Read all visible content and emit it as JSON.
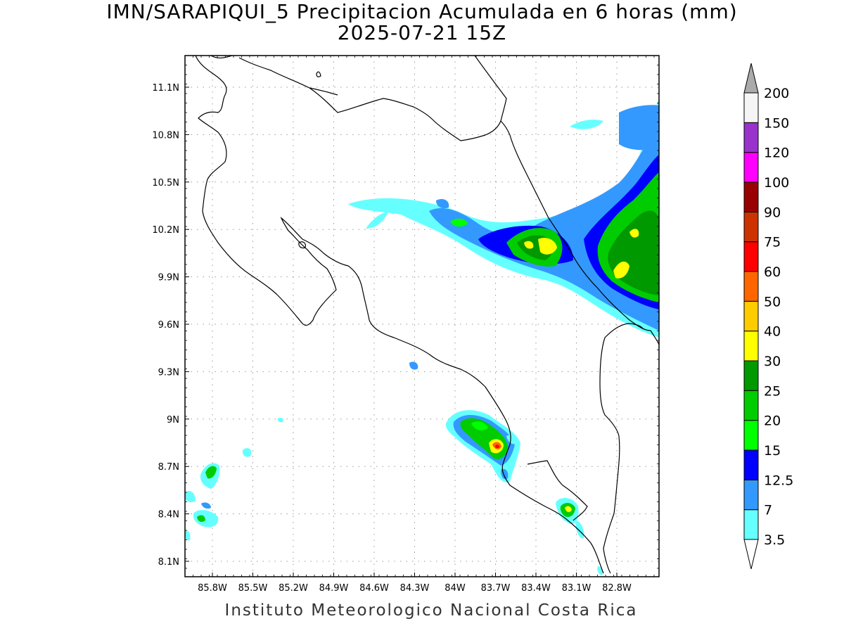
{
  "title": "IMN/SARAPIQUI_5 Precipitacion Acumulada en 6 horas (mm)",
  "subtitle": "2025-07-21 15Z",
  "footer": "Instituto Meteorologico Nacional Costa Rica",
  "axes": {
    "lon_labels": [
      "85.8W",
      "85.5W",
      "85.2W",
      "84.9W",
      "84.6W",
      "84.3W",
      "84W",
      "83.7W",
      "83.4W",
      "83.1W",
      "82.8W"
    ],
    "lat_labels": [
      "11.1N",
      "10.8N",
      "10.5N",
      "10.2N",
      "9.9N",
      "9.6N",
      "9.3N",
      "9N",
      "8.7N",
      "8.4N",
      "8.1N"
    ]
  },
  "colorbar": {
    "levels": [
      "3.5",
      "7",
      "12.5",
      "15",
      "20",
      "25",
      "30",
      "40",
      "50",
      "60",
      "75",
      "90",
      "100",
      "120",
      "150",
      "200"
    ],
    "colors": [
      "#ffffff",
      "#66ffff",
      "#3399ff",
      "#0000ff",
      "#00ff00",
      "#00cc00",
      "#009900",
      "#ffff00",
      "#ffcc00",
      "#ff6600",
      "#ff0000",
      "#cc3300",
      "#990000",
      "#ff00ff",
      "#9933cc",
      "#f5f5f5",
      "#aaaaaa"
    ]
  }
}
